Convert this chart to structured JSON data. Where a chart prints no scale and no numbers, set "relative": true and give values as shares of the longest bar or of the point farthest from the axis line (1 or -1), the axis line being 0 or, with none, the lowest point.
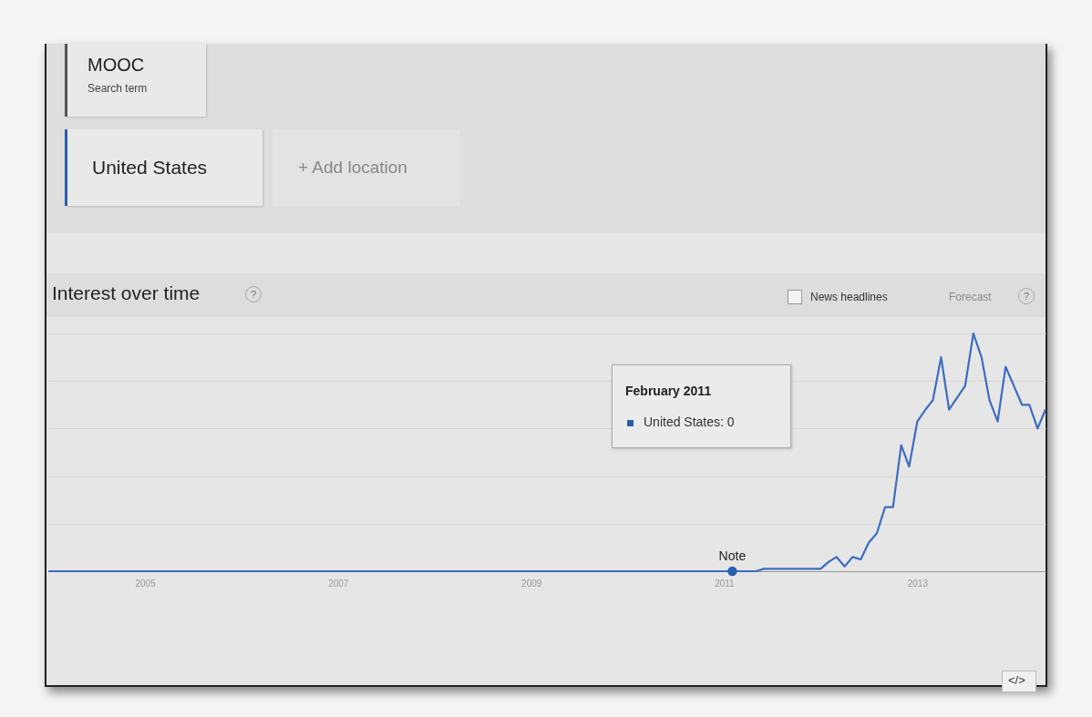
{
  "chart_data": {
    "type": "line",
    "title": "Interest over time",
    "relative": true,
    "grid": "y",
    "legend": false,
    "marker": "none",
    "line_style": "solid",
    "x": [
      "2004-01",
      "2011-02",
      "2011-05",
      "2011-06",
      "2011-12",
      "2012-01",
      "2012-02",
      "2012-03",
      "2012-04",
      "2012-05",
      "2012-06",
      "2012-07",
      "2012-08",
      "2012-09",
      "2012-10",
      "2012-11",
      "2012-12",
      "2013-01",
      "2013-02",
      "2013-03",
      "2013-04",
      "2013-05",
      "2013-06",
      "2013-07",
      "2013-08",
      "2013-09",
      "2013-10",
      "2013-11",
      "2013-12",
      "2014-01",
      "2014-02",
      "2014-03",
      "2014-04",
      "2014-05"
    ],
    "series": [
      {
        "color": "#3d6cc0",
        "values": [
          0,
          0,
          0,
          0.01,
          0.01,
          0.01,
          0.04,
          0.06,
          0.02,
          0.06,
          0.05,
          0.12,
          0.16,
          0.27,
          0.27,
          0.53,
          0.44,
          0.63,
          0.68,
          0.72,
          0.9,
          0.68,
          0.73,
          0.78,
          1,
          0.9,
          0.72,
          0.63,
          0.86,
          0.78,
          0.7,
          0.7,
          0.6,
          0.68
        ]
      }
    ],
    "xlim": [
      "2004-01",
      "2014-05"
    ],
    "xticks": [
      "2005",
      "2007",
      "2009",
      "2011",
      "2013"
    ],
    "annotations": [
      "MOOC",
      "Search term",
      "United States",
      "+ Add location",
      "News headlines",
      "Forecast",
      "February 2011",
      "United States: 0",
      "</>",
      "?",
      "?",
      {
        "text": "Note",
        "x": "2011-02",
        "y": 0
      }
    ]
  }
}
